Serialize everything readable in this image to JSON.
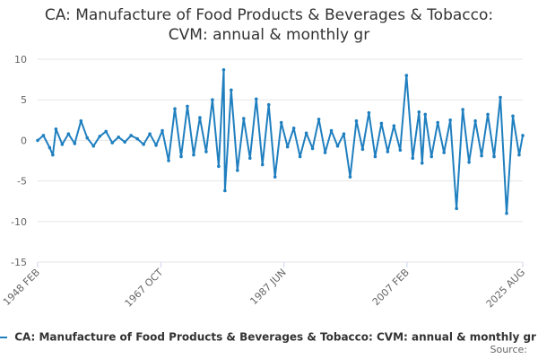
{
  "header": {
    "title_line1": "CA: Manufacture of Food Products & Beverages & Tobacco:",
    "title_line2": "CVM: annual & monthly gr"
  },
  "legend": {
    "label": "CA: Manufacture of Food Products & Beverages & Tobacco: CVM: annual & monthly gr"
  },
  "footer": {
    "source": "Source:"
  },
  "colors": {
    "series": "#1f7fbf",
    "grid": "#e6e6e6",
    "axis_text": "#666666"
  },
  "chart_data": {
    "type": "line",
    "title": "CA: Manufacture of Food Products & Beverages & Tobacco: CVM: annual & monthly gr",
    "xlabel": "",
    "ylabel": "",
    "ylim": [
      -15,
      10
    ],
    "yticks": [
      10,
      5,
      0,
      -5,
      -10,
      -15
    ],
    "x_range": [
      1948.08,
      2025.58
    ],
    "xticks": [
      {
        "label": "1948 FEB",
        "x": 1948.08
      },
      {
        "label": "1967 OCT",
        "x": 1967.75
      },
      {
        "label": "1987 JUN",
        "x": 1987.42
      },
      {
        "label": "2007 FEB",
        "x": 2007.08
      },
      {
        "label": "2025 AUG",
        "x": 2025.58
      }
    ],
    "grid": true,
    "legend_position": "bottom",
    "series": [
      {
        "name": "CA: Manufacture of Food Products & Beverages & Tobacco: CVM: annual & monthly gr",
        "x": [
          1948.08,
          1949.0,
          1950.0,
          1950.5,
          1951.0,
          1952.0,
          1953.0,
          1954.0,
          1955.0,
          1956.0,
          1957.0,
          1958.0,
          1959.0,
          1960.0,
          1961.0,
          1962.0,
          1963.0,
          1964.0,
          1965.0,
          1966.0,
          1967.0,
          1968.0,
          1969.0,
          1970.0,
          1971.0,
          1972.0,
          1973.0,
          1974.0,
          1975.0,
          1976.0,
          1977.0,
          1977.8,
          1978.0,
          1979.0,
          1980.0,
          1981.0,
          1982.0,
          1983.0,
          1984.0,
          1985.0,
          1986.0,
          1987.0,
          1988.0,
          1989.0,
          1990.0,
          1991.0,
          1992.0,
          1993.0,
          1994.0,
          1995.0,
          1996.0,
          1997.0,
          1998.0,
          1999.0,
          2000.0,
          2001.0,
          2002.0,
          2003.0,
          2004.0,
          2005.0,
          2006.0,
          2007.0,
          2008.0,
          2009.0,
          2009.5,
          2010.0,
          2011.0,
          2012.0,
          2013.0,
          2014.0,
          2015.0,
          2016.0,
          2017.0,
          2018.0,
          2019.0,
          2020.0,
          2021.0,
          2022.0,
          2023.0,
          2024.0,
          2025.0,
          2025.58
        ],
        "values": [
          0.0,
          0.6,
          -0.9,
          -1.8,
          1.4,
          -0.5,
          0.8,
          -0.4,
          2.4,
          0.3,
          -0.7,
          0.5,
          1.1,
          -0.3,
          0.4,
          -0.2,
          0.6,
          0.2,
          -0.5,
          0.8,
          -0.6,
          1.2,
          -2.5,
          3.9,
          -2.0,
          4.2,
          -1.8,
          2.8,
          -1.4,
          5.0,
          -3.2,
          8.7,
          -6.2,
          6.2,
          -3.7,
          2.7,
          -2.2,
          5.1,
          -3.0,
          4.4,
          -4.5,
          2.2,
          -0.8,
          1.5,
          -2.0,
          0.9,
          -1.0,
          2.6,
          -1.5,
          1.2,
          -0.7,
          0.8,
          -4.5,
          2.4,
          -1.1,
          3.4,
          -2.0,
          2.1,
          -1.4,
          1.8,
          -1.2,
          8.0,
          -2.2,
          3.5,
          -2.8,
          3.2,
          -2.0,
          2.2,
          -1.5,
          2.5,
          -8.4,
          3.8,
          -2.7,
          2.4,
          -1.9,
          3.2,
          -2.0,
          5.3,
          -9.0,
          3.0,
          -1.8,
          0.6
        ]
      }
    ]
  }
}
